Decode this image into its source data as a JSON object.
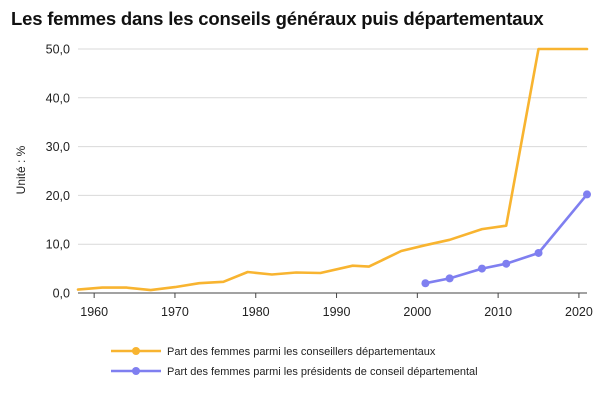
{
  "chart_data": {
    "type": "line",
    "title": "Les femmes dans les conseils généraux puis départementaux",
    "ylabel": "Unité : %",
    "xlabel": "",
    "xlim": [
      1958,
      2021
    ],
    "ylim": [
      0,
      50
    ],
    "x_ticks": [
      1960,
      1970,
      1980,
      1990,
      2000,
      2010,
      2020
    ],
    "y_ticks": [
      0,
      10,
      20,
      30,
      40,
      50
    ],
    "y_tick_labels": [
      "0,0",
      "10,0",
      "20,0",
      "30,0",
      "40,0",
      "50,0"
    ],
    "grid": true,
    "legend_position": "bottom",
    "series": [
      {
        "name": "Part des femmes parmi les conseillers départementaux",
        "color": "#f8b430",
        "markers": false,
        "x": [
          1958,
          1961,
          1964,
          1967,
          1970,
          1973,
          1976,
          1979,
          1982,
          1985,
          1988,
          1992,
          1994,
          1998,
          2001,
          2004,
          2008,
          2011,
          2015,
          2021
        ],
        "y": [
          0.7,
          1.1,
          1.1,
          0.6,
          1.2,
          2.0,
          2.3,
          4.3,
          3.8,
          4.2,
          4.1,
          5.6,
          5.4,
          8.6,
          9.8,
          10.9,
          13.1,
          13.8,
          50.0,
          50.0
        ]
      },
      {
        "name": "Part des femmes parmi les présidents de conseil départemental",
        "color": "#7f7ff0",
        "markers": true,
        "x": [
          2001,
          2004,
          2008,
          2011,
          2015,
          2021
        ],
        "y": [
          2.0,
          3.0,
          5.0,
          6.0,
          8.2,
          20.2
        ]
      }
    ]
  }
}
